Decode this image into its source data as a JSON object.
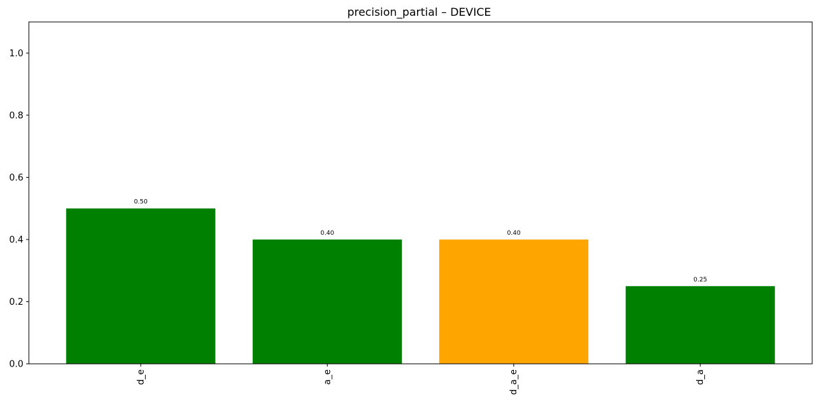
{
  "chart_data": {
    "type": "bar",
    "title": "precision_partial – DEVICE",
    "xlabel": "",
    "ylabel": "",
    "categories": [
      "d_e",
      "a_e",
      "d_a_e",
      "d_a"
    ],
    "values": [
      0.5,
      0.4,
      0.4,
      0.25
    ],
    "value_labels": [
      "0.50",
      "0.40",
      "0.40",
      "0.25"
    ],
    "bar_colors": [
      "#008000",
      "#008000",
      "#FFA500",
      "#008000"
    ],
    "ylim": [
      0,
      1.1
    ],
    "yticks": [
      0.0,
      0.2,
      0.4,
      0.6,
      0.8,
      1.0
    ],
    "ytick_labels": [
      "0.0",
      "0.2",
      "0.4",
      "0.6",
      "0.8",
      "1.0"
    ],
    "grid": false,
    "legend": "none"
  }
}
